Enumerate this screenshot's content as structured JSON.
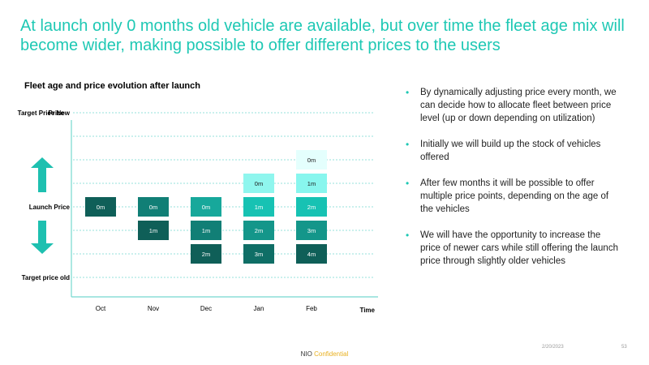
{
  "slide": {
    "title": "At launch only 0 months old vehicle are available, but over time the fleet age mix will become wider, making possible to offer different prices to the users",
    "footer_brand": "NIO",
    "footer_confidential": "Confidential",
    "date": "2/20/2023",
    "page_number": "53"
  },
  "bullets": [
    "By dynamically adjusting price every month, we can decide how to allocate fleet between price level (up or down depending on utilization)",
    "Initially we will build up the stock of vehicles offered",
    "After few months it will be possible to offer multiple price points, depending on the age of the vehicles",
    "We will have the opportunity to increase the price of newer cars while still offering the launch price through slightly older vehicles"
  ],
  "chart_data": {
    "type": "table",
    "title": "Fleet age and price evolution after launch",
    "xlabel": "Time",
    "ylabel": "Price",
    "categories": [
      "Oct",
      "Nov",
      "Dec",
      "Jan",
      "Feb"
    ],
    "price_levels": [
      4,
      3,
      2,
      1,
      0,
      -1,
      -2,
      -3
    ],
    "y_labels": [
      {
        "level": 4,
        "text": "Target Price New"
      },
      {
        "level": 0,
        "text": "Launch Price"
      },
      {
        "level": -3,
        "text": "Target price old"
      }
    ],
    "cells": [
      {
        "month": "Oct",
        "level": 0,
        "label": "0m",
        "age": 0
      },
      {
        "month": "Nov",
        "level": 0,
        "label": "0m",
        "age": 0
      },
      {
        "month": "Nov",
        "level": -1,
        "label": "1m",
        "age": 1
      },
      {
        "month": "Dec",
        "level": 0,
        "label": "0m",
        "age": 0
      },
      {
        "month": "Dec",
        "level": -1,
        "label": "1m",
        "age": 1
      },
      {
        "month": "Dec",
        "level": -2,
        "label": "2m",
        "age": 2
      },
      {
        "month": "Jan",
        "level": 1,
        "label": "0m",
        "age": 0
      },
      {
        "month": "Jan",
        "level": 0,
        "label": "1m",
        "age": 1
      },
      {
        "month": "Jan",
        "level": -1,
        "label": "2m",
        "age": 2
      },
      {
        "month": "Jan",
        "level": -2,
        "label": "3m",
        "age": 3
      },
      {
        "month": "Feb",
        "level": 2,
        "label": "0m",
        "age": 0
      },
      {
        "month": "Feb",
        "level": 1,
        "label": "1m",
        "age": 1
      },
      {
        "month": "Feb",
        "level": 0,
        "label": "2m",
        "age": 2
      },
      {
        "month": "Feb",
        "level": -1,
        "label": "3m",
        "age": 3
      },
      {
        "month": "Feb",
        "level": -2,
        "label": "4m",
        "age": 4
      }
    ],
    "palette": {
      "Oct": [
        "#0f5f58"
      ],
      "Nov": [
        "#117f76",
        "#0f5f58"
      ],
      "Dec": [
        "#17a89b",
        "#117f76",
        "#0f5f58"
      ],
      "Jan": [
        "#8ff6ee",
        "#17c2b3",
        "#14968a",
        "#0f6e66"
      ],
      "Feb": [
        "#e4fffd",
        "#88f6ee",
        "#17c2b3",
        "#14968a",
        "#0f5f58"
      ]
    },
    "axis_color": "#74d8cf",
    "gridline_color": "#74d8cf",
    "arrow_color": "#1ec0b0",
    "grid": true
  }
}
